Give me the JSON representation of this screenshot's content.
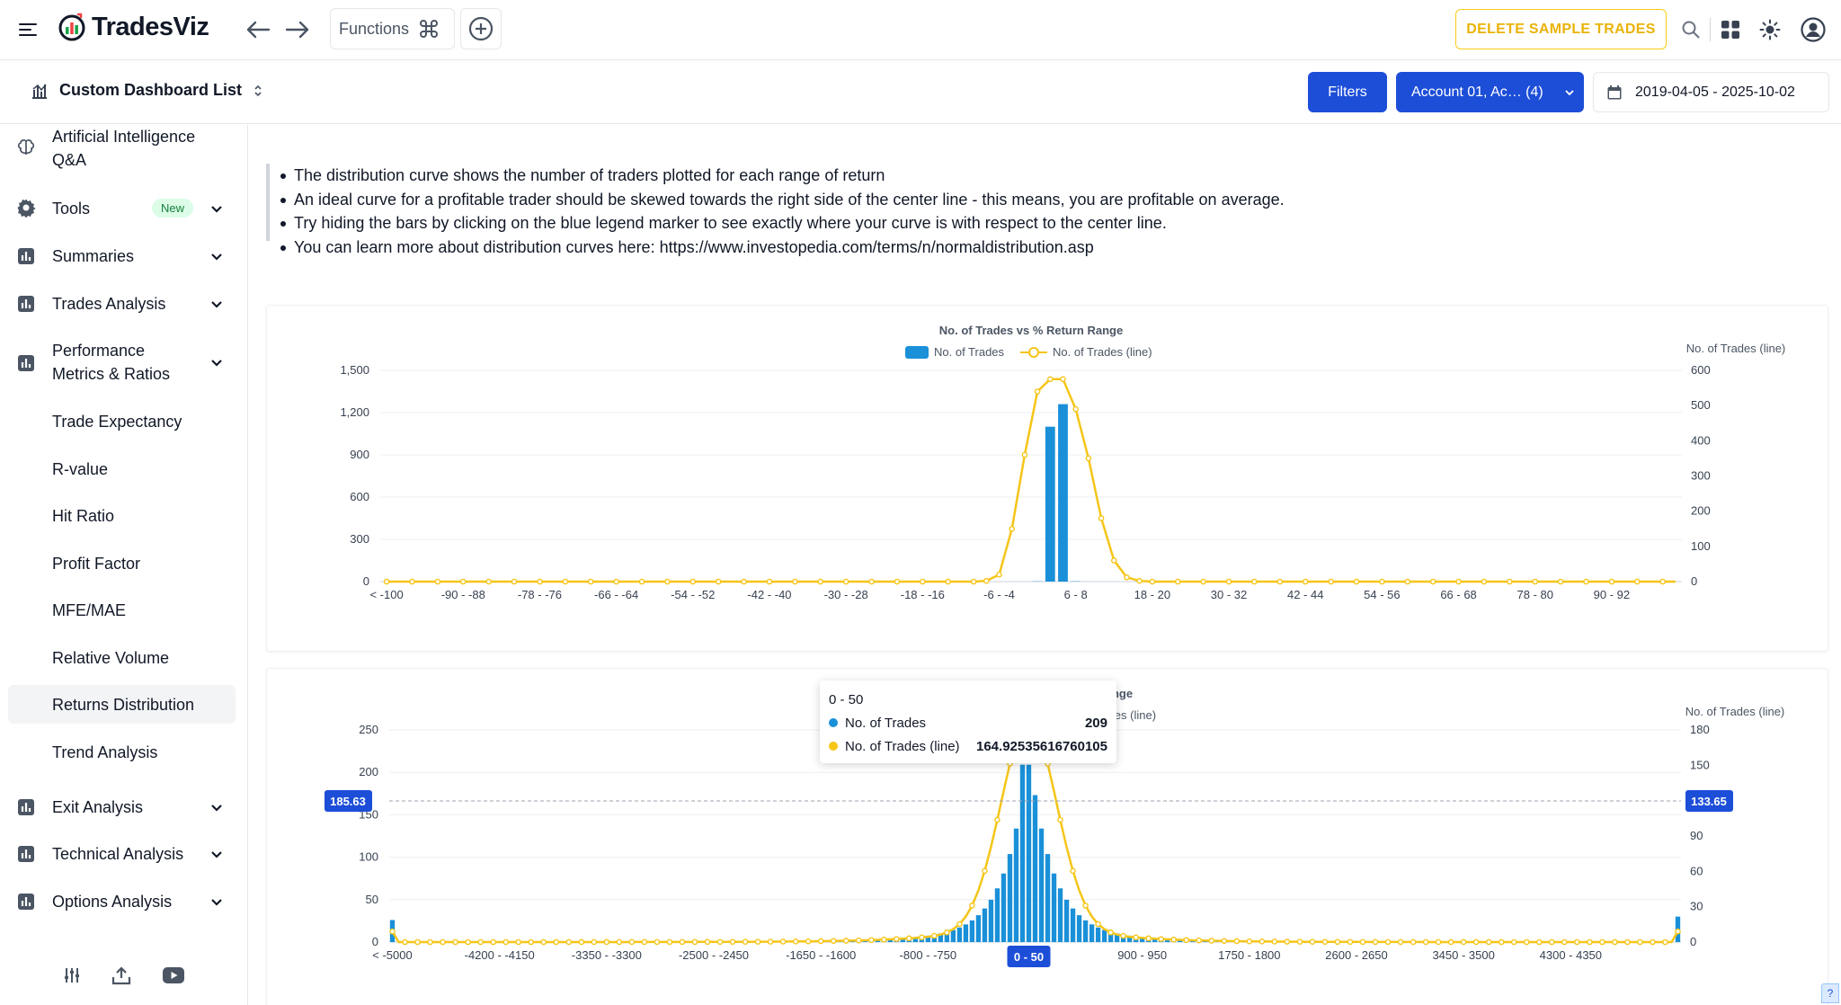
{
  "app": {
    "name": "TradesViz",
    "functions_label": "Functions",
    "delete_label": "DELETE SAMPLE TRADES"
  },
  "dashboard": {
    "title": "Custom Dashboard List",
    "filters_label": "Filters",
    "account_label": "Account 01, Ac… (4)",
    "date_range": "2019-04-05 - 2025-10-02"
  },
  "sidebar": {
    "items": [
      {
        "label": "Artificial Intelligence Q&A",
        "icon": "brain-icon"
      },
      {
        "label": "Tools",
        "icon": "gear-icon",
        "badge": "New"
      },
      {
        "label": "Summaries",
        "icon": "chart-icon"
      },
      {
        "label": "Trades Analysis",
        "icon": "chart-icon"
      },
      {
        "label": "Performance Metrics & Ratios",
        "icon": "chart-icon"
      },
      {
        "label": "Trade Expectancy"
      },
      {
        "label": "R-value"
      },
      {
        "label": "Hit Ratio"
      },
      {
        "label": "Profit Factor"
      },
      {
        "label": "MFE/MAE"
      },
      {
        "label": "Relative Volume"
      },
      {
        "label": "Returns Distribution",
        "active": true
      },
      {
        "label": "Trend Analysis"
      },
      {
        "label": "Exit Analysis",
        "icon": "chart-icon"
      },
      {
        "label": "Technical Analysis",
        "icon": "chart-icon"
      },
      {
        "label": "Options Analysis",
        "icon": "chart-icon"
      }
    ],
    "footer_icons": [
      "sliders-icon",
      "upload-icon",
      "youtube-icon"
    ]
  },
  "notes": [
    "The distribution curve shows the number of traders plotted for each range of return",
    "An ideal curve for a profitable trader should be skewed towards the right side of the center line - this means, you are profitable on average.",
    "Try hiding the bars by clicking on the blue legend marker to see exactly where your curve is with respect to the center line.",
    "You can learn more about distribution curves here: https://www.investopedia.com/terms/n/normaldistribution.asp"
  ],
  "colors": {
    "accent": "#1d4ed8",
    "bar": "#1a90d8",
    "line": "#f5c518",
    "warning": "#eab308"
  },
  "chart_data": [
    {
      "type": "bar",
      "title": "No. of Trades vs % Return Range",
      "series": [
        {
          "name": "No. of Trades",
          "type": "bar",
          "axis": "left"
        },
        {
          "name": "No. of Trades (line)",
          "type": "line",
          "axis": "right"
        }
      ],
      "right_axis_label": "No. of Trades (line)",
      "y_left_ticks": [
        "0",
        "300",
        "600",
        "900",
        "1,200",
        "1,500"
      ],
      "y_left_lim": [
        0,
        1500
      ],
      "y_right_ticks": [
        "0",
        "100",
        "200",
        "300",
        "400",
        "500",
        "600"
      ],
      "y_right_lim": [
        0,
        600
      ],
      "x_tick_labels": [
        "< -100",
        "-90 - -88",
        "-78 - -76",
        "-66 - -64",
        "-54 - -52",
        "-42 - -40",
        "-30 - -28",
        "-18 - -16",
        "-6 - -4",
        "6 - 8",
        "18 - 20",
        "30 - 32",
        "42 - 44",
        "54 - 56",
        "66 - 68",
        "78 - 80",
        "90 - 92"
      ],
      "n_bins": 102,
      "bar_values": {
        "51": 2,
        "52": 1100,
        "53": 1260,
        "54": 2
      },
      "line_values": {
        "47": 2,
        "48": 20,
        "49": 150,
        "50": 360,
        "51": 540,
        "52": 575,
        "53": 575,
        "54": 490,
        "55": 350,
        "56": 180,
        "57": 60,
        "58": 12,
        "59": 2
      }
    },
    {
      "type": "bar",
      "title": "No. of Trades vs PnL Return Range",
      "series": [
        {
          "name": "No. of Trades",
          "type": "bar",
          "axis": "left"
        },
        {
          "name": "No. of Trades (line)",
          "type": "line",
          "axis": "right"
        }
      ],
      "right_axis_label": "No. of Trades (line)",
      "y_left_ticks": [
        "0",
        "50",
        "100",
        "150",
        "200",
        "250"
      ],
      "y_left_lim": [
        0,
        250
      ],
      "y_right_ticks": [
        "0",
        "30",
        "60",
        "90",
        "120",
        "150",
        "180"
      ],
      "y_right_lim": [
        0,
        180
      ],
      "x_tick_labels": [
        "< -5000",
        "-4200 - -4150",
        "-3350 - -3300",
        "-2500 - -2450",
        "-1650 - -1600",
        "-800 - -750",
        "0 - 50",
        "900 - 950",
        "1750 - 1800",
        "2600 - 2650",
        "3450 - 3500",
        "4300 - 4350"
      ],
      "crosshair": {
        "left_value": "185.63",
        "right_value": "133.65",
        "x_value": "0 - 50"
      },
      "tooltip": {
        "title": "0 - 50",
        "rows": [
          {
            "name": "No. of Trades",
            "value": "209"
          },
          {
            "name": "No. of Trades (line)",
            "value": "164.92535616760105"
          }
        ]
      }
    }
  ]
}
